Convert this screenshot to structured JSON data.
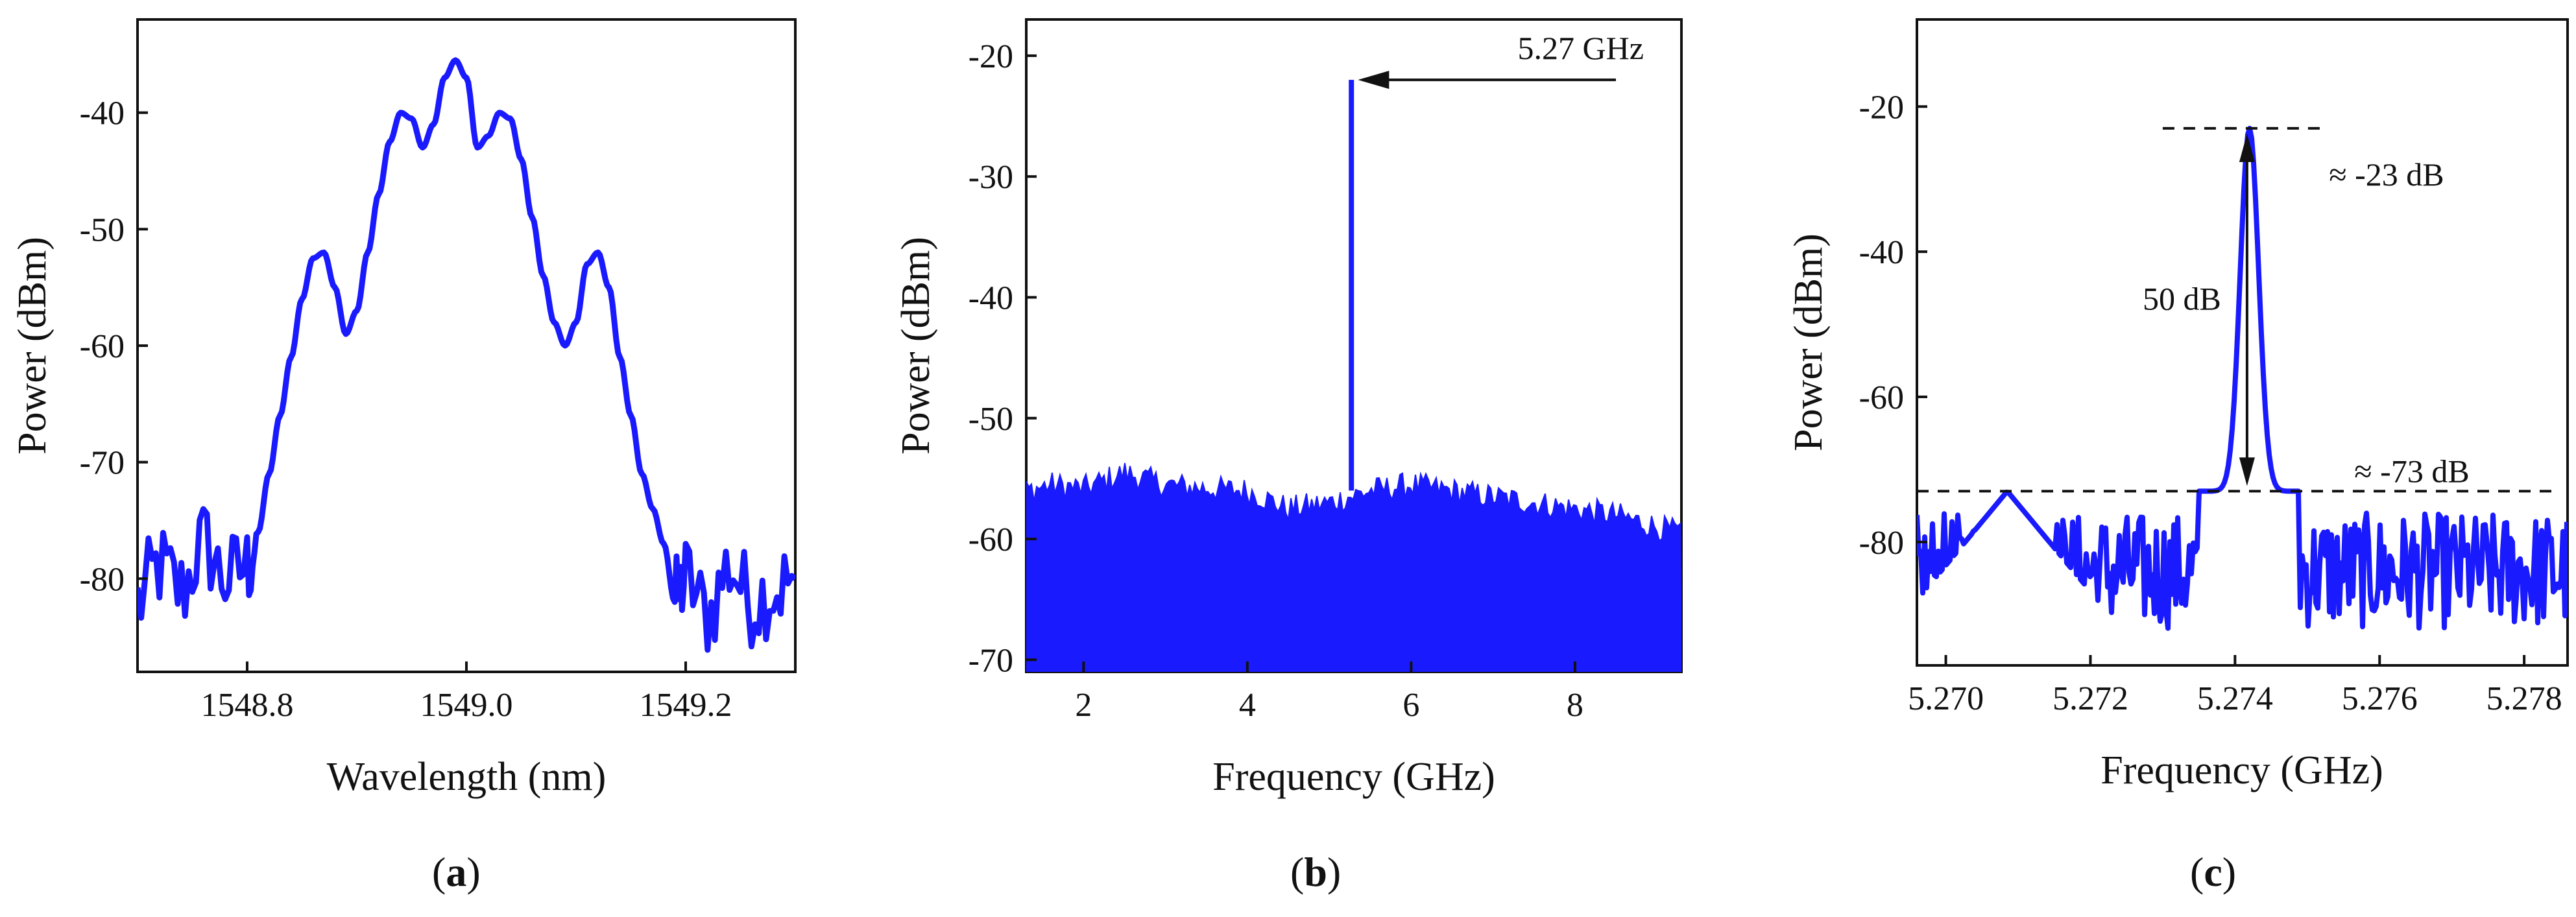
{
  "line_color": "#1a1aff",
  "chart_data": [
    {
      "id": "a",
      "type": "line",
      "panel_label": "a",
      "xlabel": "Wavelength (nm)",
      "ylabel": "Power (dBm)",
      "xlim": [
        1548.7,
        1549.3
      ],
      "ylim": [
        -88,
        -32
      ],
      "xticks": [
        1548.8,
        1549.0,
        1549.2
      ],
      "xtick_labels": [
        "1548.8",
        "1549.0",
        "1549.2"
      ],
      "yticks": [
        -80,
        -70,
        -60,
        -50,
        -40
      ],
      "ytick_labels": [
        "-80",
        "-70",
        "-60",
        "-50",
        "-40"
      ],
      "series": [
        {
          "x": [
            1548.7,
            1548.72,
            1548.74,
            1548.76,
            1548.78,
            1548.8,
            1548.81,
            1548.82,
            1548.83,
            1548.84,
            1548.85,
            1548.86,
            1548.87,
            1548.88,
            1548.89,
            1548.9,
            1548.91,
            1548.92,
            1548.93,
            1548.94,
            1548.95,
            1548.96,
            1548.97,
            1548.98,
            1548.99,
            1549.0,
            1549.01,
            1549.02,
            1549.03,
            1549.04,
            1549.05,
            1549.06,
            1549.07,
            1549.08,
            1549.09,
            1549.1,
            1549.11,
            1549.12,
            1549.13,
            1549.14,
            1549.15,
            1549.16,
            1549.17,
            1549.18,
            1549.19,
            1549.2,
            1549.22,
            1549.24,
            1549.26,
            1549.28,
            1549.3
          ],
          "y": [
            -82,
            -79,
            -81,
            -77,
            -80,
            -79,
            -76,
            -71,
            -66,
            -61,
            -56,
            -52.5,
            -52,
            -55,
            -59,
            -57,
            -52,
            -47,
            -42.5,
            -40,
            -40.5,
            -43,
            -41,
            -37,
            -35.5,
            -37,
            -43,
            -42,
            -40,
            -40.5,
            -44,
            -49,
            -54,
            -58,
            -60,
            -58,
            -53,
            -52,
            -55,
            -61,
            -66,
            -71,
            -74,
            -77,
            -82,
            -80,
            -83,
            -79,
            -82,
            -81,
            -80
          ]
        }
      ]
    },
    {
      "id": "b",
      "type": "line",
      "panel_label": "b",
      "xlabel": "Frequency (GHz)",
      "ylabel": "Power (dBm)",
      "xlim": [
        1.3,
        9.3
      ],
      "ylim": [
        -71,
        -17
      ],
      "xticks": [
        2,
        4,
        6,
        8
      ],
      "xtick_labels": [
        "2",
        "4",
        "6",
        "8"
      ],
      "yticks": [
        -70,
        -60,
        -50,
        -40,
        -30,
        -20
      ],
      "ytick_labels": [
        "-70",
        "-60",
        "-50",
        "-40",
        "-30",
        "-20"
      ],
      "noise_floor": -71,
      "noise_top": {
        "x": [
          1.3,
          1.6,
          2.0,
          2.5,
          3.0,
          3.5,
          4.0,
          4.5,
          5.0,
          5.5,
          6.0,
          6.5,
          7.0,
          7.5,
          8.0,
          8.5,
          9.0,
          9.3
        ],
        "y": [
          -56,
          -55.5,
          -55.8,
          -54.5,
          -55.5,
          -55.8,
          -56,
          -57.5,
          -57,
          -56,
          -55.5,
          -56,
          -56.5,
          -57,
          -57.5,
          -58,
          -59,
          -59.5
        ]
      },
      "peak": {
        "x": 5.27,
        "y": -22
      },
      "annotations": [
        {
          "text": "5.27 GHz",
          "x": 7.3,
          "y": -20.8,
          "arrow_from": [
            8.5,
            -22
          ],
          "arrow_to": [
            5.35,
            -22
          ]
        }
      ]
    },
    {
      "id": "c",
      "type": "line",
      "panel_label": "c",
      "xlabel": "Frequency (GHz)",
      "ylabel": "Power (dBm)",
      "xlim": [
        5.2696,
        5.2786
      ],
      "ylim": [
        -97,
        -8
      ],
      "xticks": [
        5.27,
        5.272,
        5.274,
        5.276,
        5.278
      ],
      "xtick_labels": [
        "5.270",
        "5.272",
        "5.274",
        "5.276",
        "5.278"
      ],
      "yticks": [
        -80,
        -60,
        -40,
        -20
      ],
      "ytick_labels": [
        "-80",
        "-60",
        "-40",
        "-20"
      ],
      "peak": {
        "x": 5.2742,
        "y": -23
      },
      "floor_level": -73,
      "annotations": [
        {
          "text": "≈ -23 dB",
          "x": 5.2752,
          "y": -23
        },
        {
          "text": "≈ -73 dB",
          "x": 5.2757,
          "y": -73
        },
        {
          "text": "50 dB",
          "x": 5.2718,
          "y": -48
        }
      ]
    }
  ]
}
